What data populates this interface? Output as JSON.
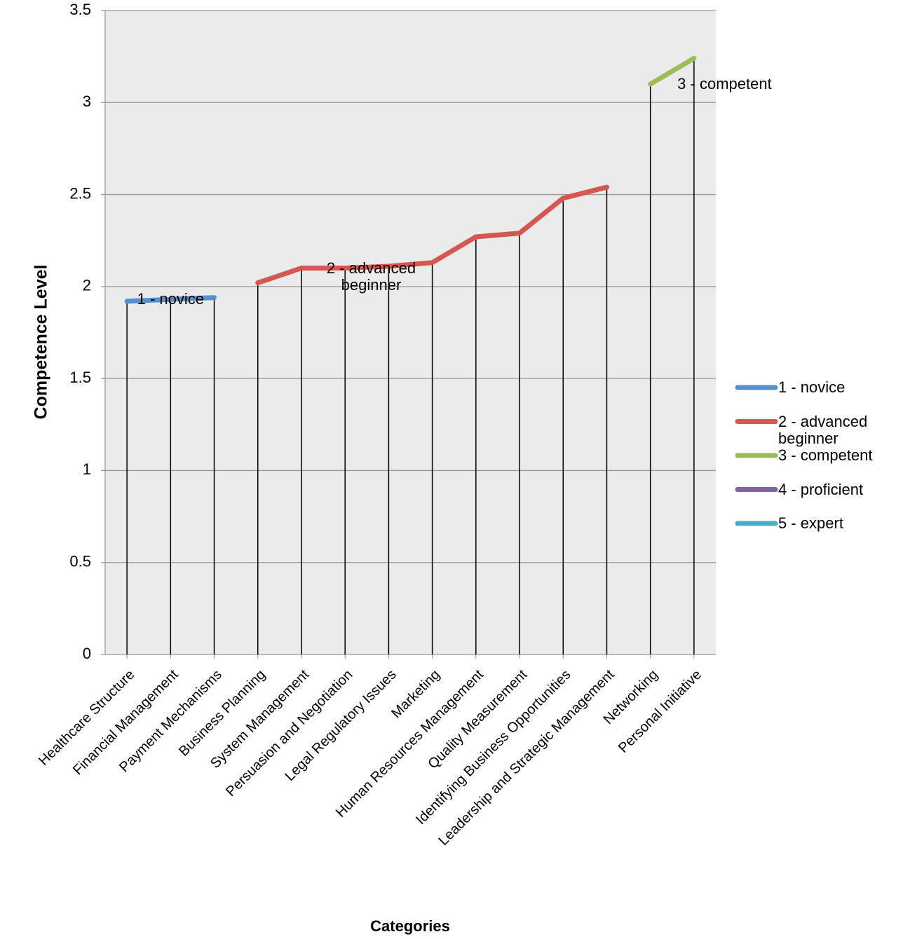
{
  "chart_data": {
    "type": "line",
    "x_label": "Categories",
    "y_label": "Competence Level",
    "categories": [
      "Healthcare Structure",
      "Financial Management",
      "Payment Mechanisms",
      "Business Planning",
      "System Management",
      "Persuasion and Negotiation",
      "Legal Regulatory Issues",
      "Marketing",
      "Human Resources Management",
      "Quality Measurement",
      "Identifying Business Opportunities",
      "Leadership and Strategic Management",
      "Networking",
      "Personal Initiative"
    ],
    "series": [
      {
        "name": "1 - novice",
        "color": "#5b8fcb",
        "values": [
          1.92,
          1.93,
          1.94,
          null,
          null,
          null,
          null,
          null,
          null,
          null,
          null,
          null,
          null,
          null
        ]
      },
      {
        "name": "2 - advanced beginner",
        "color": "#d4584f",
        "values": [
          null,
          null,
          null,
          2.02,
          2.1,
          2.1,
          2.11,
          2.13,
          2.27,
          2.29,
          2.48,
          2.54,
          null,
          null
        ]
      },
      {
        "name": "3 - competent",
        "color": "#9dbb59",
        "values": [
          null,
          null,
          null,
          null,
          null,
          null,
          null,
          null,
          null,
          null,
          null,
          null,
          3.1,
          3.24
        ]
      },
      {
        "name": "4 - proficient",
        "color": "#8064a2",
        "values": [
          null,
          null,
          null,
          null,
          null,
          null,
          null,
          null,
          null,
          null,
          null,
          null,
          null,
          null
        ]
      },
      {
        "name": "5 - expert",
        "color": "#4bacc6",
        "values": [
          null,
          null,
          null,
          null,
          null,
          null,
          null,
          null,
          null,
          null,
          null,
          null,
          null,
          null
        ]
      }
    ],
    "annotations": [
      {
        "text": "1 - novice",
        "category": 1,
        "value": 1.93
      },
      {
        "text": "2 - advanced beginner",
        "category": 5.6,
        "value": 2.1
      },
      {
        "text": "3 - competent",
        "category": 13.7,
        "value": 3.1
      }
    ],
    "ylim": [
      0,
      3.5
    ],
    "yticks": [
      0,
      0.5,
      1,
      1.5,
      2,
      2.5,
      3,
      3.5
    ],
    "grid": true,
    "drop_lines": true,
    "legend": "right"
  }
}
